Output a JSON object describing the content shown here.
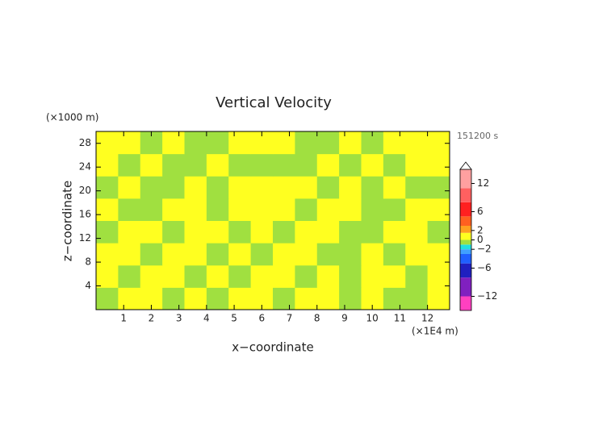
{
  "chart_data": {
    "type": "contour",
    "title": "Vertical Velocity",
    "xlabel": "x−coordinate",
    "ylabel": "z−coordinate",
    "x_unit_label": "(×1E4 m)",
    "y_unit_label": "(×1000 m)",
    "time_label": "151200 s",
    "xlim": [
      0,
      12.8
    ],
    "ylim": [
      0,
      30
    ],
    "xticks": [
      1,
      2,
      3,
      4,
      5,
      6,
      7,
      8,
      9,
      10,
      11,
      12
    ],
    "yticks": [
      4,
      8,
      12,
      16,
      20,
      24,
      28
    ],
    "z": [
      [
        -0.5,
        0.5,
        0.5,
        -0.5,
        0.5,
        -0.5,
        0.5,
        0.5,
        -0.5,
        0.5,
        0.5,
        -0.5,
        0.5,
        -0.5,
        -0.5,
        0.5
      ],
      [
        0.5,
        -0.5,
        0.5,
        0.5,
        -0.5,
        0.5,
        -0.5,
        0.5,
        0.5,
        -0.5,
        0.5,
        -0.5,
        0.5,
        0.5,
        -0.5,
        0.5
      ],
      [
        0.5,
        0.5,
        -0.5,
        0.5,
        0.5,
        -0.5,
        0.5,
        -0.5,
        0.5,
        0.5,
        -0.5,
        -0.5,
        0.5,
        -0.5,
        0.5,
        0.5
      ],
      [
        -0.5,
        0.5,
        0.5,
        -0.5,
        0.5,
        0.5,
        -0.5,
        0.5,
        -0.5,
        0.5,
        0.5,
        -0.5,
        -0.5,
        0.5,
        0.5,
        -0.5
      ],
      [
        0.5,
        -0.5,
        -0.5,
        0.5,
        0.5,
        -0.5,
        0.5,
        0.5,
        0.5,
        -0.5,
        0.5,
        0.5,
        -0.5,
        -0.5,
        0.5,
        0.5
      ],
      [
        -0.5,
        0.5,
        -0.5,
        -0.5,
        0.5,
        -0.5,
        0.5,
        0.5,
        0.5,
        0.5,
        -0.5,
        0.5,
        -0.5,
        0.5,
        -0.5,
        -0.5
      ],
      [
        0.5,
        -0.5,
        0.5,
        -0.5,
        -0.5,
        0.5,
        -0.5,
        -0.5,
        -0.5,
        -0.5,
        0.5,
        -0.5,
        0.5,
        -0.5,
        0.5,
        0.5
      ],
      [
        0.5,
        0.5,
        -0.5,
        0.5,
        -0.5,
        -0.5,
        0.5,
        0.5,
        0.5,
        -0.5,
        -0.5,
        0.5,
        -0.5,
        0.5,
        0.5,
        0.5
      ]
    ],
    "colorbar": {
      "clim": [
        -15,
        15
      ],
      "levels": [
        -15,
        -12,
        -8,
        -5,
        -3,
        -2,
        -1,
        0,
        1.5,
        3,
        5,
        8,
        11,
        15
      ],
      "colors": [
        "#ff40c0",
        "#8020c0",
        "#2020c0",
        "#2060ff",
        "#40a0ff",
        "#20e0e0",
        "#a0e040",
        "#ffff20",
        "#ffa020",
        "#ff6020",
        "#ff2020",
        "#ff6060",
        "#ffa0a0"
      ],
      "ticks": [
        12,
        6,
        2,
        0,
        {
          "value": -2,
          "label": "−2"
        },
        {
          "value": -6,
          "label": "−6"
        },
        {
          "value": -12,
          "label": "−12"
        }
      ]
    }
  }
}
